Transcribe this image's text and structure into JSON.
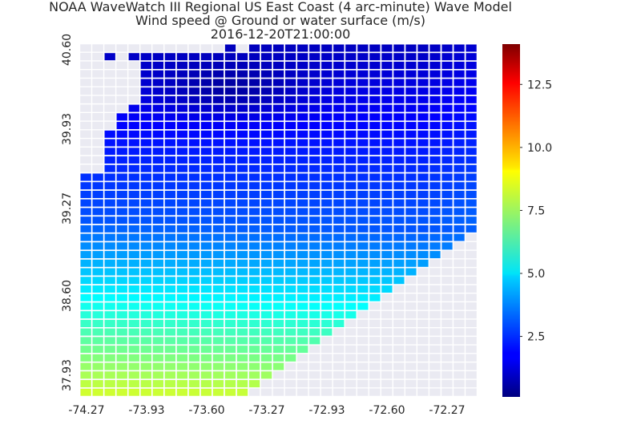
{
  "chart_data": {
    "type": "heatmap",
    "title_lines": [
      "NOAA WaveWatch III Regional US East Coast (4 arc-minute) Wave Model",
      "Wind speed @ Ground or water surface (m/s)",
      "2016-12-20T21:00:00"
    ],
    "xlabel": "",
    "ylabel": "",
    "x_tick_labels": [
      "-74.27",
      "-73.93",
      "-73.60",
      "-73.27",
      "-72.93",
      "-72.60",
      "-72.27"
    ],
    "y_tick_labels": [
      "40.60",
      "39.93",
      "39.27",
      "38.60",
      "37.93"
    ],
    "grid": {
      "columns": 33,
      "rows": 41,
      "lon_min": -74.27,
      "lat_max": 40.6,
      "step_deg": 0.0667,
      "background_color": "#eaeaf2",
      "missing_cells_are_land": true
    },
    "values_description_free": true,
    "colorbar": {
      "colormap": "jet",
      "vmin": 0.1,
      "vmax": 14.1,
      "tick_labels": [
        "2.5",
        "5.0",
        "7.5",
        "10.0",
        "12.5"
      ],
      "tick_values": [
        2.5,
        5.0,
        7.5,
        10.0,
        12.5
      ]
    },
    "field_model": {
      "top_speed": 0.9,
      "north_gradient": 0.05,
      "south_speed": 5.0,
      "calm_center_lon": -73.55,
      "calm_center_lat": 40.2
    }
  }
}
